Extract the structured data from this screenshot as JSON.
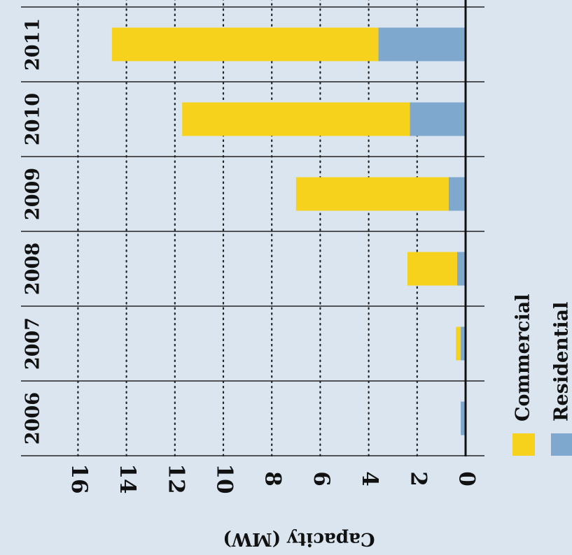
{
  "chart_data": {
    "type": "bar",
    "stacked": true,
    "orientation": "rotated-90",
    "categories": [
      "2006",
      "2007",
      "2008",
      "2009",
      "2010",
      "2011"
    ],
    "series": [
      {
        "name": "Residential",
        "color": "#7fa8ce",
        "values": [
          0.2,
          0.2,
          0.35,
          0.7,
          2.3,
          3.6
        ]
      },
      {
        "name": "Commercial",
        "color": "#f7d21c",
        "values": [
          0.0,
          0.2,
          2.05,
          6.3,
          9.4,
          11.0
        ]
      }
    ],
    "ylabel": "Capacity (MW)",
    "ylim": [
      0,
      16
    ],
    "yticks": [
      0,
      2,
      4,
      6,
      8,
      10,
      12,
      14,
      16
    ],
    "grid": "dotted",
    "legend_position": "bottom-right"
  }
}
